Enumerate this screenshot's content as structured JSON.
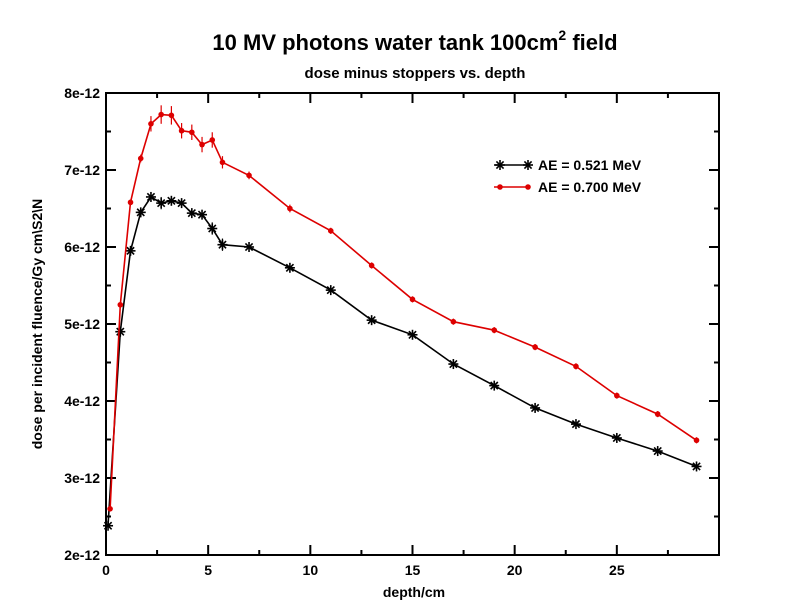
{
  "chart_data": {
    "type": "line",
    "title": "10 MV photons water tank 100cm",
    "title_superscript": "2",
    "title_suffix": " field",
    "subtitle": "dose minus stoppers vs. depth",
    "xlabel": "depth/cm",
    "ylabel": "dose per incident fluence/Gy cm\\S2\\N",
    "xlim": [
      0,
      30
    ],
    "ylim": [
      2e-12,
      8e-12
    ],
    "x_ticks": [
      0,
      5,
      10,
      15,
      20,
      25
    ],
    "x_tick_labels": [
      "0",
      "5",
      "10",
      "15",
      "20",
      "25"
    ],
    "y_ticks": [
      2e-12,
      3e-12,
      4e-12,
      5e-12,
      6e-12,
      7e-12,
      8e-12
    ],
    "y_tick_labels": [
      "2e-12",
      "3e-12",
      "4e-12",
      "5e-12",
      "6e-12",
      "7e-12",
      "8e-12"
    ],
    "grid": false,
    "legend_position": "top-right",
    "series": [
      {
        "name": "AE = 0.521 MeV",
        "color": "#000000",
        "marker": "asterisk",
        "x": [
          0.1,
          0.7,
          1.2,
          1.7,
          2.2,
          2.7,
          3.2,
          3.7,
          4.2,
          4.7,
          5.2,
          5.7,
          7.0,
          9.0,
          11.0,
          13.0,
          15.0,
          17.0,
          19.0,
          21.0,
          23.0,
          25.0,
          27.0,
          28.9
        ],
        "y": [
          2.38e-12,
          4.9e-12,
          5.95e-12,
          6.45e-12,
          6.65e-12,
          6.57e-12,
          6.6e-12,
          6.57e-12,
          6.44e-12,
          6.42e-12,
          6.24e-12,
          6.03e-12,
          6e-12,
          5.73e-12,
          5.44e-12,
          5.05e-12,
          4.86e-12,
          4.48e-12,
          4.2e-12,
          3.91e-12,
          3.7e-12,
          3.52e-12,
          3.35e-12,
          3.15e-12
        ],
        "err": [
          0,
          0,
          0,
          0,
          0,
          8e-14,
          0,
          0,
          0,
          0,
          8e-14,
          8e-14,
          0,
          0,
          0,
          0,
          0,
          0,
          0,
          0,
          0,
          0,
          0,
          0
        ]
      },
      {
        "name": "AE = 0.700 MeV",
        "color": "#dd0000",
        "marker": "dot",
        "x": [
          0.2,
          0.7,
          1.2,
          1.7,
          2.2,
          2.7,
          3.2,
          3.7,
          4.2,
          4.7,
          5.2,
          5.7,
          7.0,
          9.0,
          11.0,
          13.0,
          15.0,
          17.0,
          19.0,
          21.0,
          23.0,
          25.0,
          27.0,
          28.9
        ],
        "y": [
          2.6e-12,
          5.25e-12,
          6.58e-12,
          7.15e-12,
          7.6e-12,
          7.72e-12,
          7.71e-12,
          7.51e-12,
          7.49e-12,
          7.33e-12,
          7.39e-12,
          7.1e-12,
          6.93e-12,
          6.5e-12,
          6.21e-12,
          5.76e-12,
          5.32e-12,
          5.03e-12,
          4.92e-12,
          4.7e-12,
          4.45e-12,
          4.07e-12,
          3.83e-12,
          3.49e-12
        ],
        "err": [
          0,
          0,
          0,
          5e-14,
          1e-13,
          1.2e-13,
          1.2e-13,
          1e-13,
          1e-13,
          1e-13,
          1e-13,
          8e-14,
          5e-14,
          5e-14,
          4e-14,
          4e-14,
          4e-14,
          4e-14,
          4e-14,
          4e-14,
          4e-14,
          4e-14,
          4e-14,
          4e-14
        ]
      }
    ]
  }
}
